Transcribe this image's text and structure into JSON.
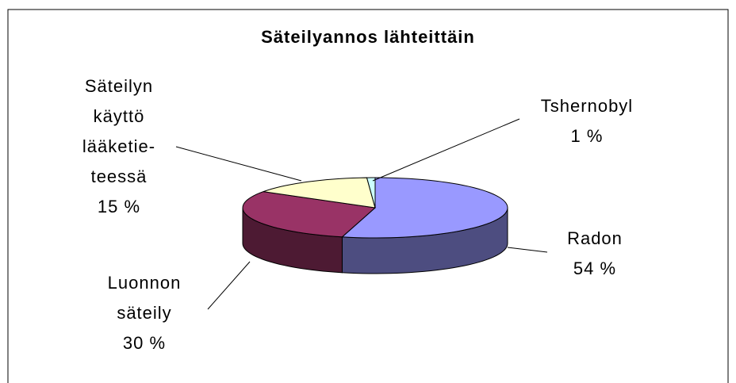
{
  "chart_data": {
    "type": "pie",
    "title": "Säteilyannos lähteittäin",
    "categories": [
      "Radon",
      "Luonnon\nsäteily",
      "Säteilyn\nkäyttö\nlääketie-\nteessä",
      "Tshernobyl"
    ],
    "values": [
      54,
      30,
      15,
      1
    ],
    "value_labels": [
      "54 %",
      "30 %",
      "15 %",
      "1 %"
    ],
    "colors": [
      "#9999ff",
      "#993366",
      "#ffffcc",
      "#ccffff"
    ],
    "side_colors": [
      "#4d4d80",
      "#4d1a33",
      "#808066",
      "#668080"
    ]
  }
}
